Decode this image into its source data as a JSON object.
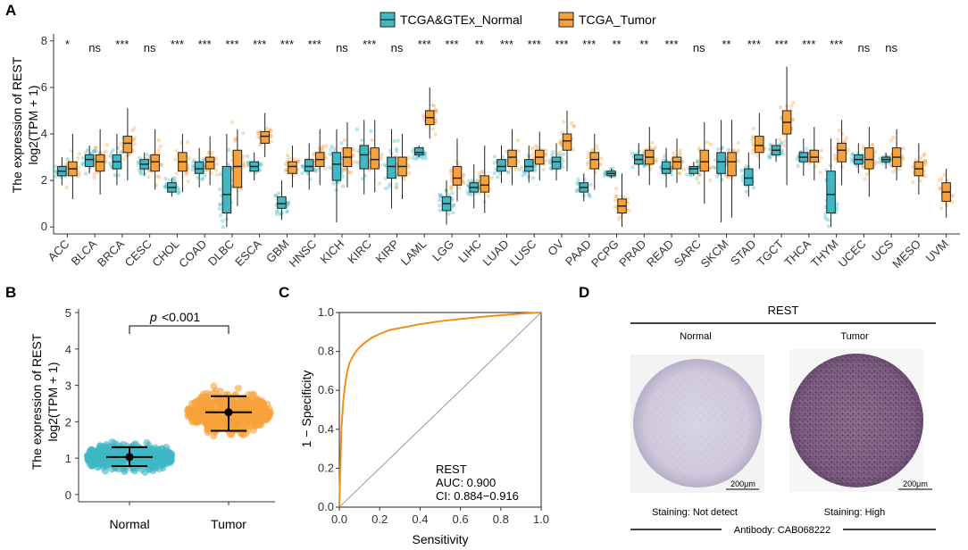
{
  "panels": {
    "a": "A",
    "b": "B",
    "c": "C",
    "d": "D"
  },
  "colors": {
    "normal": "#3fb8c4",
    "tumor": "#f7a13a",
    "roc": "#f28e1c",
    "diag": "#9a9a9a"
  },
  "legend": {
    "normal": "TCGA&GTEx_Normal",
    "tumor": "TCGA_Tumor"
  },
  "chart_data": [
    {
      "type": "box",
      "ylabel": [
        "The expression of REST",
        "log2(TPM + 1)"
      ],
      "ylim": [
        -0.3,
        8.3
      ],
      "yticks": [
        0,
        2,
        4,
        6,
        8
      ],
      "series": [
        "TCGA&GTEx_Normal",
        "TCGA_Tumor"
      ],
      "categories": [
        {
          "name": "ACC",
          "sig": "*",
          "n": [
            2.2,
            2.4,
            2.6,
            1.8,
            3.0
          ],
          "t": [
            2.2,
            2.5,
            2.8,
            1.2,
            4.0
          ]
        },
        {
          "name": "BLCA",
          "sig": "ns",
          "n": [
            2.6,
            2.9,
            3.1,
            2.3,
            3.5
          ],
          "t": [
            2.4,
            2.8,
            3.1,
            1.4,
            4.2
          ]
        },
        {
          "name": "BRCA",
          "sig": "***",
          "n": [
            2.5,
            2.8,
            3.1,
            1.8,
            4.0
          ],
          "t": [
            3.2,
            3.6,
            3.9,
            2.0,
            5.1
          ]
        },
        {
          "name": "CESC",
          "sig": "ns",
          "n": [
            2.5,
            2.7,
            2.9,
            2.2,
            3.2
          ],
          "t": [
            2.4,
            2.8,
            3.1,
            1.6,
            4.2
          ]
        },
        {
          "name": "CHOL",
          "sig": "***",
          "n": [
            1.5,
            1.7,
            1.9,
            1.3,
            2.1
          ],
          "t": [
            2.4,
            2.8,
            3.2,
            1.5,
            4.0
          ]
        },
        {
          "name": "COAD",
          "sig": "***",
          "n": [
            2.3,
            2.5,
            2.8,
            1.7,
            3.4
          ],
          "t": [
            2.5,
            2.8,
            3.0,
            1.8,
            3.9
          ]
        },
        {
          "name": "DLBC",
          "sig": "***",
          "n": [
            0.6,
            1.4,
            2.6,
            0.0,
            4.0
          ],
          "t": [
            1.7,
            2.6,
            3.3,
            0.9,
            4.2
          ]
        },
        {
          "name": "ESCA",
          "sig": "***",
          "n": [
            2.4,
            2.6,
            2.8,
            2.0,
            3.2
          ],
          "t": [
            3.6,
            3.9,
            4.1,
            3.0,
            4.9
          ]
        },
        {
          "name": "GBM",
          "sig": "***",
          "n": [
            0.8,
            1.0,
            1.3,
            0.3,
            2.0
          ],
          "t": [
            2.3,
            2.6,
            2.8,
            1.7,
            3.5
          ]
        },
        {
          "name": "HNSC",
          "sig": "***",
          "n": [
            2.4,
            2.6,
            2.9,
            1.6,
            3.6
          ],
          "t": [
            2.6,
            2.9,
            3.2,
            1.8,
            4.2
          ]
        },
        {
          "name": "KICH",
          "sig": "ns",
          "n": [
            2.0,
            2.7,
            3.2,
            0.2,
            4.2
          ],
          "t": [
            2.6,
            3.0,
            3.4,
            1.7,
            4.5
          ]
        },
        {
          "name": "KIRC",
          "sig": "***",
          "n": [
            2.5,
            3.1,
            3.5,
            1.4,
            4.6
          ],
          "t": [
            2.5,
            2.9,
            3.4,
            1.5,
            4.6
          ]
        },
        {
          "name": "KIRP",
          "sig": "ns",
          "n": [
            2.1,
            2.6,
            3.0,
            0.8,
            4.2
          ],
          "t": [
            2.2,
            2.6,
            3.0,
            1.2,
            4.0
          ]
        },
        {
          "name": "LAML",
          "sig": "***",
          "n": [
            3.1,
            3.2,
            3.4,
            3.0,
            3.5
          ],
          "t": [
            4.4,
            4.7,
            5.0,
            3.8,
            6.0
          ]
        },
        {
          "name": "LGG",
          "sig": "***",
          "n": [
            0.7,
            1.0,
            1.3,
            0.1,
            2.0
          ],
          "t": [
            1.8,
            2.1,
            2.6,
            1.1,
            3.8
          ]
        },
        {
          "name": "LIHC",
          "sig": "**",
          "n": [
            1.5,
            1.7,
            1.9,
            0.8,
            2.7
          ],
          "t": [
            1.5,
            1.8,
            2.2,
            0.6,
            3.5
          ]
        },
        {
          "name": "LUAD",
          "sig": "***",
          "n": [
            2.4,
            2.6,
            2.9,
            1.9,
            3.5
          ],
          "t": [
            2.6,
            3.0,
            3.3,
            1.8,
            4.2
          ]
        },
        {
          "name": "LUSC",
          "sig": "***",
          "n": [
            2.4,
            2.6,
            2.9,
            1.9,
            3.5
          ],
          "t": [
            2.7,
            3.0,
            3.3,
            2.0,
            4.1
          ]
        },
        {
          "name": "OV",
          "sig": "***",
          "n": [
            2.5,
            2.8,
            3.0,
            2.0,
            3.6
          ],
          "t": [
            3.3,
            3.7,
            4.0,
            2.4,
            5.0
          ]
        },
        {
          "name": "PAAD",
          "sig": "***",
          "n": [
            1.5,
            1.7,
            1.9,
            1.1,
            2.3
          ],
          "t": [
            2.5,
            2.9,
            3.2,
            1.6,
            4.0
          ]
        },
        {
          "name": "PCPG",
          "sig": "**",
          "n": [
            2.2,
            2.3,
            2.4,
            2.1,
            2.5
          ],
          "t": [
            0.6,
            0.9,
            1.2,
            0.0,
            2.3
          ]
        },
        {
          "name": "PRAD",
          "sig": "**",
          "n": [
            2.7,
            2.9,
            3.1,
            2.2,
            3.6
          ],
          "t": [
            2.7,
            3.0,
            3.3,
            1.8,
            4.3
          ]
        },
        {
          "name": "READ",
          "sig": "***",
          "n": [
            2.3,
            2.5,
            2.8,
            1.7,
            3.4
          ],
          "t": [
            2.5,
            2.8,
            3.0,
            1.9,
            3.8
          ]
        },
        {
          "name": "SARC",
          "sig": "ns",
          "n": [
            2.3,
            2.5,
            2.6,
            2.2,
            2.8
          ],
          "t": [
            2.4,
            2.8,
            3.3,
            1.0,
            4.5
          ]
        },
        {
          "name": "SKCM",
          "sig": "**",
          "n": [
            2.3,
            2.8,
            3.2,
            0.2,
            4.6
          ],
          "t": [
            2.2,
            2.8,
            3.2,
            0.4,
            4.6
          ]
        },
        {
          "name": "STAD",
          "sig": "***",
          "n": [
            1.8,
            2.1,
            2.5,
            1.3,
            3.2
          ],
          "t": [
            3.2,
            3.5,
            3.9,
            2.5,
            4.9
          ]
        },
        {
          "name": "TGCT",
          "sig": "***",
          "n": [
            3.1,
            3.3,
            3.5,
            2.8,
            3.8
          ],
          "t": [
            4.0,
            4.5,
            5.0,
            1.8,
            6.9
          ]
        },
        {
          "name": "THCA",
          "sig": "***",
          "n": [
            2.8,
            3.0,
            3.2,
            2.2,
            3.8
          ],
          "t": [
            2.8,
            3.0,
            3.3,
            2.0,
            4.3
          ]
        },
        {
          "name": "THYM",
          "sig": "***",
          "n": [
            0.6,
            1.4,
            2.4,
            0.0,
            3.8
          ],
          "t": [
            2.8,
            3.3,
            3.6,
            1.8,
            4.6
          ]
        },
        {
          "name": "UCEC",
          "sig": "ns",
          "n": [
            2.7,
            2.9,
            3.1,
            2.3,
            3.6
          ],
          "t": [
            2.5,
            2.9,
            3.4,
            1.3,
            4.3
          ]
        },
        {
          "name": "UCS",
          "sig": "ns",
          "n": [
            2.8,
            2.9,
            3.0,
            2.5,
            3.2
          ],
          "t": [
            2.6,
            3.0,
            3.4,
            2.0,
            4.2
          ]
        },
        {
          "name": "MESO",
          "sig": "",
          "n": null,
          "t": [
            2.2,
            2.5,
            2.8,
            1.4,
            3.6
          ]
        },
        {
          "name": "UVM",
          "sig": "",
          "n": null,
          "t": [
            1.1,
            1.5,
            1.9,
            0.4,
            2.5
          ]
        }
      ]
    },
    {
      "type": "scatter",
      "ylabel": [
        "The expression of REST",
        "log2(TPM + 1)"
      ],
      "ylim": [
        -0.2,
        5.1
      ],
      "yticks": [
        0,
        1,
        2,
        3,
        4,
        5
      ],
      "categories": [
        "Normal",
        "Tumor"
      ],
      "mean": [
        1.03,
        2.26
      ],
      "sd_low": [
        0.78,
        1.75
      ],
      "sd_high": [
        1.3,
        2.7
      ],
      "range": [
        [
          0.0,
          3.1
        ],
        [
          0.0,
          4.4
        ]
      ],
      "pvalue_label": "p",
      "pvalue_text": "<0.001"
    },
    {
      "type": "line",
      "xlabel": "Sensitivity",
      "ylabel": "1 − Specificity",
      "xlim": [
        0,
        1
      ],
      "ylim": [
        0,
        1
      ],
      "ticks": [
        "0.0",
        "0.2",
        "0.4",
        "0.6",
        "0.8",
        "1.0"
      ],
      "x": [
        0,
        0.005,
        0.01,
        0.02,
        0.03,
        0.04,
        0.05,
        0.07,
        0.09,
        0.12,
        0.16,
        0.2,
        0.25,
        0.3,
        0.4,
        0.5,
        0.6,
        0.7,
        0.8,
        0.9,
        1.0
      ],
      "y": [
        0,
        0.2,
        0.4,
        0.55,
        0.64,
        0.7,
        0.74,
        0.78,
        0.81,
        0.84,
        0.87,
        0.89,
        0.91,
        0.92,
        0.94,
        0.955,
        0.967,
        0.977,
        0.986,
        0.994,
        1.0
      ],
      "annotation": [
        "REST",
        "AUC: 0.900",
        "CI: 0.884−0.916"
      ]
    }
  ],
  "ihc": {
    "title": "REST",
    "normal_label": "Normal",
    "tumor_label": "Tumor",
    "scale_label": "200μm",
    "normal_staining": "Staining: Not detect",
    "tumor_staining": "Staining: High",
    "antibody": "Antibody: CAB068222"
  }
}
